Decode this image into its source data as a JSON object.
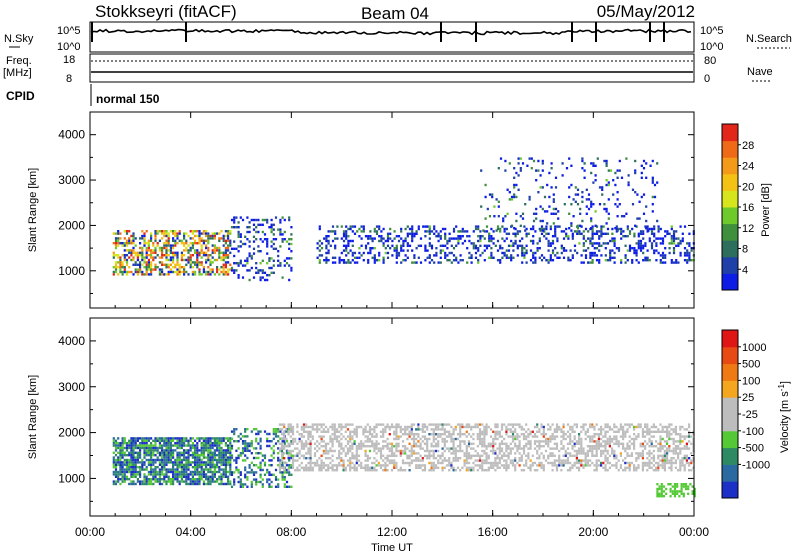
{
  "header": {
    "station": "Stokkseyri (fitACF)",
    "beam": "Beam 04",
    "date": "05/May/2012"
  },
  "aux_panel": {
    "nsky_label": "N.Sky",
    "nsearch_label": "N.Search",
    "freq_label_1": "Freq.",
    "freq_label_2": "[MHz]",
    "nave_label": "Nave",
    "cpid_label": "CPID",
    "cpid_value": "normal 150",
    "noise_ticks_left": [
      "10^5",
      "10^0"
    ],
    "noise_ticks_right": [
      "10^5",
      "10^0"
    ],
    "freq_ticks": [
      "18",
      "8"
    ],
    "nave_ticks": [
      "80",
      "0"
    ]
  },
  "chart_data": [
    {
      "type": "heatmap",
      "name": "power",
      "ylabel": "Slant Range [km]",
      "ylim": [
        180,
        4500
      ],
      "yticks": [
        1000,
        2000,
        3000,
        4000
      ],
      "xlim": [
        0,
        24
      ],
      "colorbar": {
        "label": "Power [dB]",
        "ticks": [
          "4",
          "8",
          "12",
          "16",
          "20",
          "24",
          "28"
        ],
        "colors": [
          "#0d1de6",
          "#1f40a8",
          "#2d6f5c",
          "#3f8f3c",
          "#6ec92a",
          "#d6e51c",
          "#f4c214",
          "#f39a1a",
          "#ee6a16",
          "#e3261a"
        ]
      },
      "scatter_bands": [
        {
          "t0": 0.9,
          "t1": 5.6,
          "r0": 900,
          "r1": 1900,
          "level": 0.55
        },
        {
          "t0": 5.6,
          "t1": 8.0,
          "r0": 800,
          "r1": 2200,
          "level": 0.25
        },
        {
          "t0": 9.0,
          "t1": 24.0,
          "r0": 1200,
          "r1": 2000,
          "level": 0.3
        },
        {
          "t0": 15.5,
          "t1": 22.5,
          "r0": 1900,
          "r1": 3500,
          "level": 0.1
        }
      ]
    },
    {
      "type": "heatmap",
      "name": "velocity",
      "ylabel": "Slant Range [km]",
      "xlabel": "Time UT",
      "ylim": [
        180,
        4500
      ],
      "yticks": [
        1000,
        2000,
        3000,
        4000
      ],
      "xlim": [
        0,
        24
      ],
      "xticks": [
        "00:00",
        "04:00",
        "08:00",
        "12:00",
        "16:00",
        "20:00",
        "00:00"
      ],
      "colorbar": {
        "label": "Velocity [m s^-1]",
        "ticks": [
          "1000",
          "500",
          "100",
          "25",
          "-25",
          "-100",
          "-500",
          "-1000"
        ],
        "colors": [
          "#1c2fc7",
          "#2a6aa0",
          "#2e8a63",
          "#55c935",
          "#bdbdbd",
          "#bdbdbd",
          "#f3a61e",
          "#ef7a14",
          "#e84a14",
          "#e01616"
        ]
      },
      "scatter_bands": [
        {
          "t0": 0.9,
          "t1": 5.6,
          "r0": 900,
          "r1": 1900,
          "level": 0.8
        },
        {
          "t0": 5.6,
          "t1": 8.0,
          "r0": 800,
          "r1": 2100,
          "level": 0.4
        },
        {
          "t0": 7.5,
          "t1": 24.0,
          "r0": 1200,
          "r1": 2200,
          "level": 0.5
        },
        {
          "t0": 22.5,
          "t1": 24.0,
          "r0": 600,
          "r1": 900,
          "level": 0.6
        }
      ]
    }
  ]
}
